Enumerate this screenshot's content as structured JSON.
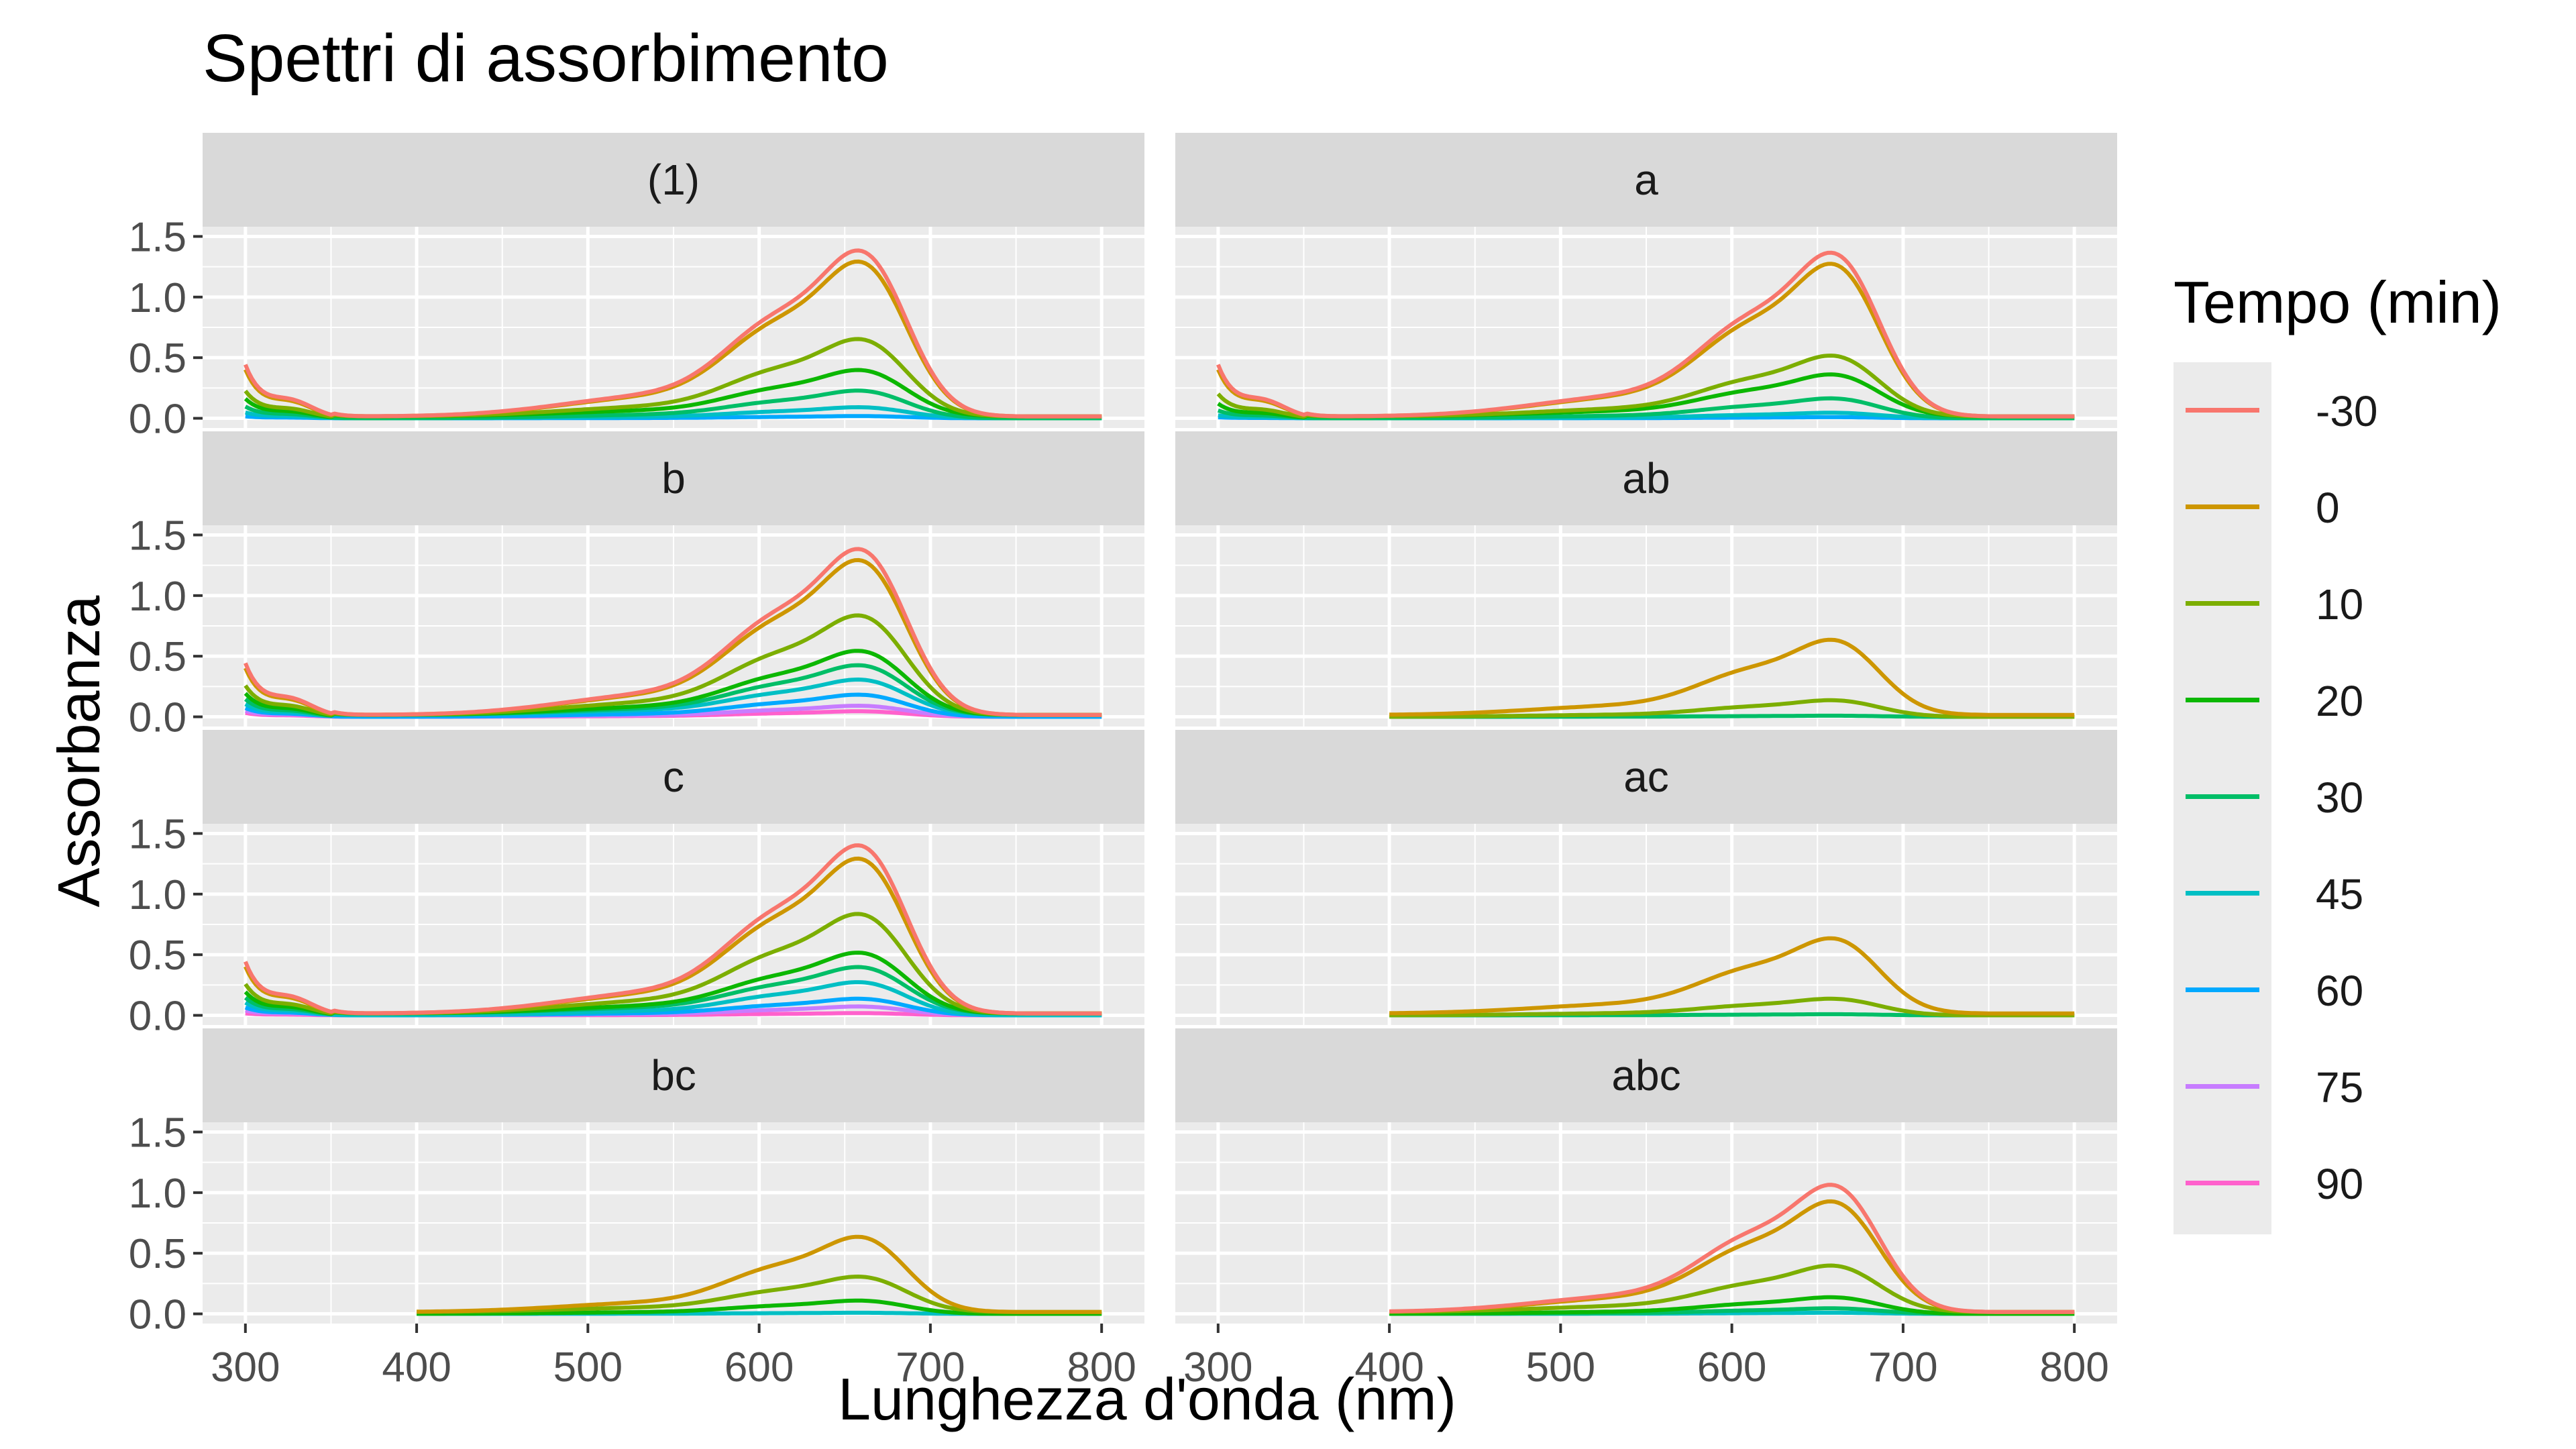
{
  "chart_data": {
    "type": "line",
    "title": "Spettri di assorbimento",
    "xlabel": "Lunghezza d'onda (nm)",
    "ylabel": "Assorbanza",
    "xlim": [
      275,
      825
    ],
    "ylim": [
      -0.08,
      1.58
    ],
    "x_ticks": [
      300,
      400,
      500,
      600,
      700,
      800
    ],
    "y_ticks": [
      "0.0",
      "0.5",
      "1.0",
      "1.5"
    ],
    "grid": true,
    "legend": {
      "title": "Tempo (min)",
      "placement": "right",
      "entries": [
        {
          "label": "-30",
          "color": "#F8766D"
        },
        {
          "label": "0",
          "color": "#CD9600"
        },
        {
          "label": "10",
          "color": "#7CAE00"
        },
        {
          "label": "20",
          "color": "#0CB702"
        },
        {
          "label": "30",
          "color": "#00BE67"
        },
        {
          "label": "45",
          "color": "#00BFC4"
        },
        {
          "label": "60",
          "color": "#00A9FF"
        },
        {
          "label": "75",
          "color": "#C77CFF"
        },
        {
          "label": "90",
          "color": "#FF61CC"
        }
      ]
    },
    "panels": [
      {
        "label": "(1)",
        "x_start": 300,
        "series": [
          {
            "name": "-30",
            "peak": 1.5,
            "uv": 0.55
          },
          {
            "name": "0",
            "peak": 1.4,
            "uv": 0.5
          },
          {
            "name": "10",
            "peak": 0.7,
            "uv": 0.28
          },
          {
            "name": "20",
            "peak": 0.42,
            "uv": 0.2
          },
          {
            "name": "30",
            "peak": 0.25,
            "uv": 0.12
          },
          {
            "name": "45",
            "peak": 0.1,
            "uv": 0.06
          },
          {
            "name": "60",
            "peak": 0.02,
            "uv": 0.02
          }
        ]
      },
      {
        "label": "a",
        "x_start": 300,
        "series": [
          {
            "name": "-30",
            "peak": 1.48,
            "uv": 0.55
          },
          {
            "name": "0",
            "peak": 1.38,
            "uv": 0.5
          },
          {
            "name": "10",
            "peak": 0.55,
            "uv": 0.25
          },
          {
            "name": "20",
            "peak": 0.38,
            "uv": 0.15
          },
          {
            "name": "30",
            "peak": 0.18,
            "uv": 0.08
          },
          {
            "name": "45",
            "peak": 0.05,
            "uv": 0.03
          },
          {
            "name": "60",
            "peak": 0.01,
            "uv": 0.01
          }
        ]
      },
      {
        "label": "b",
        "x_start": 300,
        "series": [
          {
            "name": "-30",
            "peak": 1.5,
            "uv": 0.55
          },
          {
            "name": "0",
            "peak": 1.4,
            "uv": 0.5
          },
          {
            "name": "10",
            "peak": 0.9,
            "uv": 0.32
          },
          {
            "name": "20",
            "peak": 0.58,
            "uv": 0.24
          },
          {
            "name": "30",
            "peak": 0.45,
            "uv": 0.18
          },
          {
            "name": "45",
            "peak": 0.32,
            "uv": 0.13
          },
          {
            "name": "60",
            "peak": 0.2,
            "uv": 0.09
          },
          {
            "name": "75",
            "peak": 0.1,
            "uv": 0.06
          },
          {
            "name": "90",
            "peak": 0.05,
            "uv": 0.04
          }
        ]
      },
      {
        "label": "ab",
        "x_start": 400,
        "series": [
          {
            "name": "0",
            "peak": 0.68,
            "uv": 0
          },
          {
            "name": "10",
            "peak": 0.15,
            "uv": 0
          },
          {
            "name": "30",
            "peak": 0.01,
            "uv": 0
          }
        ]
      },
      {
        "label": "c",
        "x_start": 300,
        "series": [
          {
            "name": "-30",
            "peak": 1.52,
            "uv": 0.55
          },
          {
            "name": "0",
            "peak": 1.4,
            "uv": 0.5
          },
          {
            "name": "10",
            "peak": 0.9,
            "uv": 0.32
          },
          {
            "name": "20",
            "peak": 0.55,
            "uv": 0.24
          },
          {
            "name": "30",
            "peak": 0.42,
            "uv": 0.18
          },
          {
            "name": "45",
            "peak": 0.3,
            "uv": 0.13
          },
          {
            "name": "60",
            "peak": 0.15,
            "uv": 0.08
          },
          {
            "name": "75",
            "peak": 0.08,
            "uv": 0.05
          },
          {
            "name": "90",
            "peak": 0.02,
            "uv": 0.02
          }
        ]
      },
      {
        "label": "ac",
        "x_start": 400,
        "series": [
          {
            "name": "0",
            "peak": 0.68,
            "uv": 0
          },
          {
            "name": "10",
            "peak": 0.15,
            "uv": 0
          },
          {
            "name": "30",
            "peak": 0.01,
            "uv": 0
          }
        ]
      },
      {
        "label": "bc",
        "x_start": 400,
        "series": [
          {
            "name": "0",
            "peak": 0.68,
            "uv": 0
          },
          {
            "name": "10",
            "peak": 0.32,
            "uv": 0
          },
          {
            "name": "20",
            "peak": 0.12,
            "uv": 0
          },
          {
            "name": "45",
            "peak": 0.01,
            "uv": 0
          }
        ]
      },
      {
        "label": "abc",
        "x_start": 400,
        "series": [
          {
            "name": "-30",
            "peak": 1.15,
            "uv": 0
          },
          {
            "name": "0",
            "peak": 1.0,
            "uv": 0
          },
          {
            "name": "10",
            "peak": 0.42,
            "uv": 0
          },
          {
            "name": "20",
            "peak": 0.15,
            "uv": 0
          },
          {
            "name": "30",
            "peak": 0.05,
            "uv": 0
          },
          {
            "name": "45",
            "peak": 0.01,
            "uv": 0
          }
        ]
      }
    ]
  }
}
